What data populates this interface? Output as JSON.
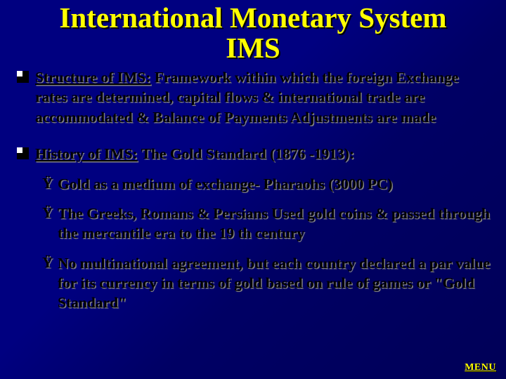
{
  "colors": {
    "background": "#000080",
    "title": "#ffff00",
    "body_text": "#000000",
    "body_shadow": "#808080",
    "title_shadow": "#000000",
    "menu": "#ffff00"
  },
  "typography": {
    "title_fontsize_pt": 31,
    "body_fontsize_pt": 16,
    "menu_fontsize_pt": 11,
    "font_family": "Times New Roman",
    "weight": "bold"
  },
  "title": {
    "line1": "International Monetary System",
    "line2": "IMS"
  },
  "bullets": [
    {
      "lead_underlined": "Structure of IMS:",
      "rest": " Framework within which the foreign Exchange rates are determined, capital flows & international trade are accommodated & Balance of Payments Adjustments are made"
    },
    {
      "lead_underlined": "History of IMS:",
      "rest": " The Gold Standard (1876 -1913):",
      "sub": [
        "Gold as a medium of exchange- Pharaohs (3000 PC)",
        "The Greeks, Romans & Persians Used gold coins & passed through the mercantile era to the 19 th century",
        "No multinational agreement, but each country declared a par value for its currency in terms of gold based on rule of games or \"Gold Standard\""
      ]
    }
  ],
  "sub_bullet_glyph": "Ÿ",
  "menu_label": "MENU"
}
